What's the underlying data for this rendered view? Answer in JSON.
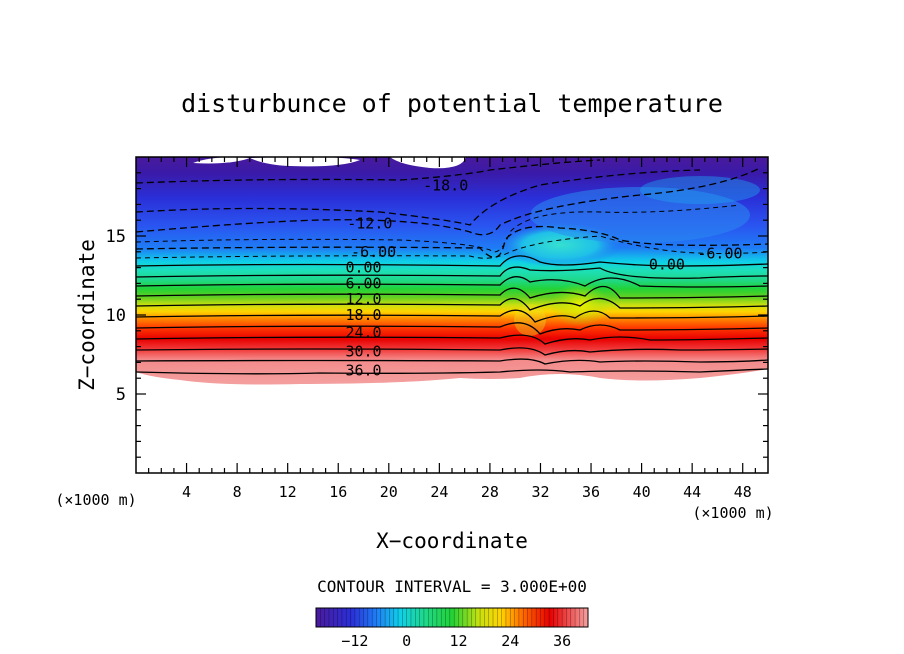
{
  "chart_data": {
    "type": "heatmap",
    "title": "disturbunce of potential temperature",
    "xlabel": "X−coordinate",
    "ylabel": "Z−coordinate",
    "x_unit": "(×1000 m)",
    "y_unit": "(×1000 m)",
    "xlim": [
      0,
      50
    ],
    "ylim": [
      0,
      20
    ],
    "x_ticks": [
      4,
      8,
      12,
      16,
      20,
      24,
      28,
      32,
      36,
      40,
      44,
      48
    ],
    "y_ticks": [
      5,
      10,
      15
    ],
    "contour_interval_text": "CONTOUR INTERVAL = 3.000E+00",
    "contour_labels": [
      {
        "text": "-18.0",
        "x": 24.5,
        "z": 18.2
      },
      {
        "text": "-12.0",
        "x": 18.5,
        "z": 15.8
      },
      {
        "text": "-6.00",
        "x": 18.8,
        "z": 14.0
      },
      {
        "text": "0.00",
        "x": 18.0,
        "z": 13.0
      },
      {
        "text": "6.00",
        "x": 18.0,
        "z": 12.0
      },
      {
        "text": "12.0",
        "x": 18.0,
        "z": 11.0
      },
      {
        "text": "18.0",
        "x": 18.0,
        "z": 10.0
      },
      {
        "text": "24.0",
        "x": 18.0,
        "z": 8.9
      },
      {
        "text": "30.0",
        "x": 18.0,
        "z": 7.7
      },
      {
        "text": "36.0",
        "x": 18.0,
        "z": 6.5
      },
      {
        "text": "0.00",
        "x": 42.0,
        "z": 13.2
      },
      {
        "text": "-6.00",
        "x": 46.2,
        "z": 13.9
      }
    ],
    "colorbar": {
      "range": [
        -21,
        42
      ],
      "tick_labels": [
        "−12",
        "0",
        "12",
        "24",
        "36"
      ],
      "tick_values": [
        -12,
        0,
        12,
        24,
        36
      ]
    }
  }
}
